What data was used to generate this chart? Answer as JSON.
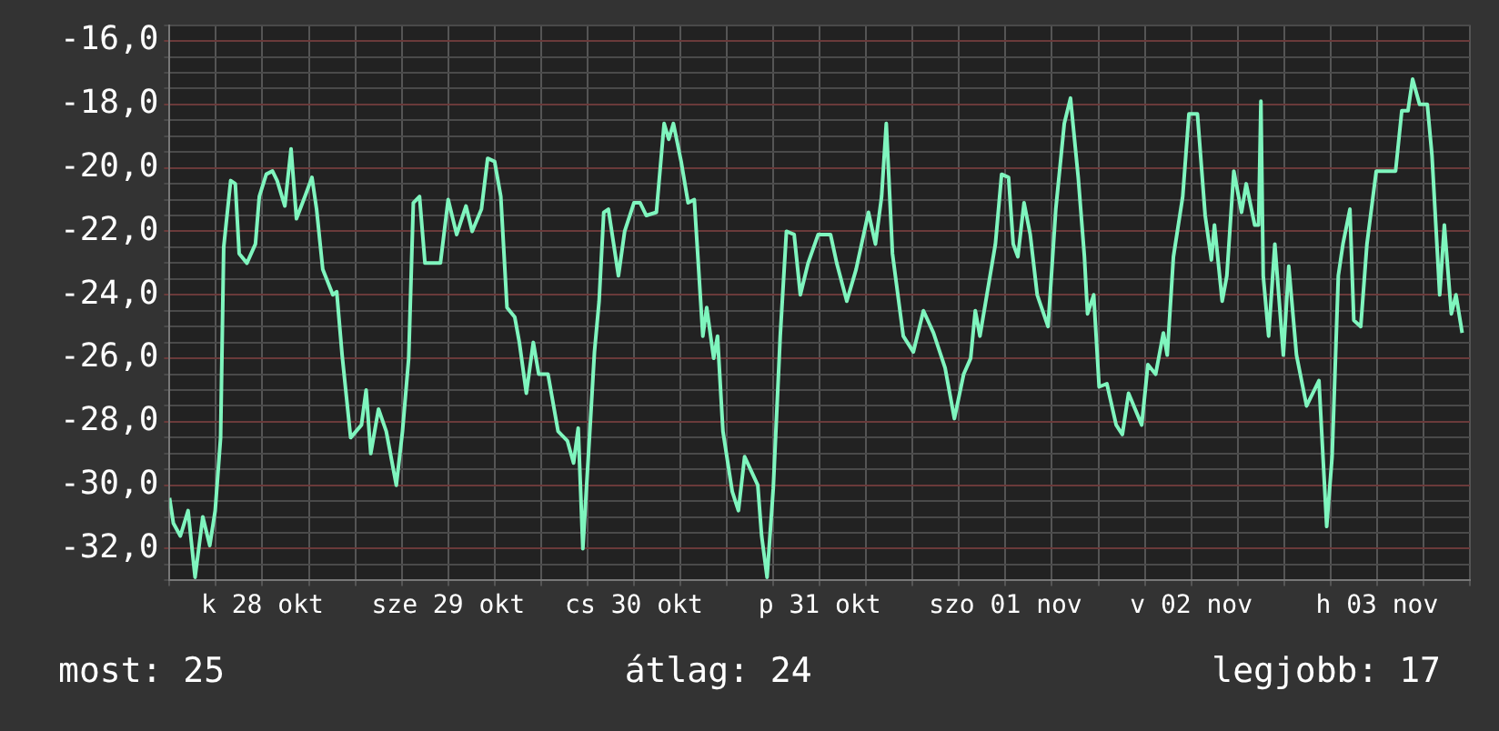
{
  "chart_data": {
    "type": "line",
    "annotations": [
      "most: 25",
      "átlag: 24",
      "legjobb: 17"
    ],
    "x": [
      "--10-28T00:00",
      "--10-28T00:30",
      "--10-28T01:24",
      "--10-28T02:24",
      "--10-28T03:18",
      "--10-28T04:18",
      "--10-28T05:12",
      "--10-28T05:54",
      "--10-28T06:36",
      "--10-28T07:00",
      "--10-28T07:54",
      "--10-28T08:30",
      "--10-28T09:00",
      "--10-28T10:00",
      "--10-28T11:06",
      "--10-28T11:36",
      "--10-28T12:30",
      "--10-28T13:18",
      "--10-28T13:54",
      "--10-28T14:54",
      "--10-28T15:42",
      "--10-28T16:24",
      "--10-28T17:30",
      "--10-28T18:24",
      "--10-28T19:00",
      "--10-28T19:48",
      "--10-28T21:06",
      "--10-28T21:36",
      "--10-28T22:18",
      "--10-28T23:24",
      "--10-29T00:48",
      "--10-29T01:24",
      "--10-29T02:00",
      "--10-29T03:00",
      "--10-29T04:00",
      "--10-29T05:18",
      "--10-29T06:06",
      "--10-29T06:54",
      "--10-29T07:30",
      "--10-29T08:18",
      "--10-29T09:00",
      "--10-29T11:00",
      "--10-29T12:00",
      "--10-29T13:06",
      "--10-29T14:18",
      "--10-29T15:06",
      "--10-29T16:18",
      "--10-29T17:06",
      "--10-29T18:00",
      "--10-29T18:48",
      "--10-29T19:36",
      "--10-29T20:36",
      "--10-29T21:12",
      "--10-29T22:06",
      "--10-29T23:00",
      "--10-29T23:42",
      "--10-30T00:54",
      "--10-30T02:12",
      "--10-30T03:24",
      "--10-30T04:12",
      "--10-30T04:48",
      "--10-30T05:24",
      "--10-30T06:24",
      "--10-30T06:54",
      "--10-30T07:30",
      "--10-30T08:06",
      "--10-30T08:42",
      "--10-30T10:00",
      "--10-30T10:48",
      "--10-30T12:00",
      "--10-30T12:48",
      "--10-30T13:36",
      "--10-30T14:54",
      "--10-30T15:54",
      "--10-30T16:30",
      "--10-30T17:06",
      "--10-30T18:06",
      "--10-30T19:00",
      "--10-30T19:48",
      "--10-30T20:54",
      "--10-30T21:24",
      "--10-30T22:18",
      "--10-30T22:48",
      "--10-30T23:30",
      "--10-31T00:42",
      "--10-31T01:30",
      "--10-31T02:18",
      "--10-31T04:00",
      "--10-31T04:30",
      "--10-31T05:12",
      "--10-31T06:00",
      "--10-31T06:54",
      "--10-31T07:42",
      "--10-31T08:42",
      "--10-31T09:30",
      "--10-31T10:30",
      "--10-31T11:48",
      "--10-31T13:24",
      "--10-31T14:12",
      "--10-31T15:30",
      "--10-31T16:42",
      "--10-31T18:18",
      "--10-31T19:12",
      "--10-31T20:00",
      "--10-31T20:36",
      "--10-31T21:24",
      "--10-31T22:48",
      "--11-01T00:06",
      "--11-01T01:24",
      "--11-01T02:42",
      "--11-01T04:12",
      "--11-01T05:24",
      "--11-01T06:36",
      "--11-01T07:30",
      "--11-01T08:06",
      "--11-01T08:42",
      "--11-01T10:42",
      "--11-01T11:30",
      "--11-01T12:24",
      "--11-01T13:00",
      "--11-01T13:36",
      "--11-01T14:24",
      "--11-01T15:12",
      "--11-01T16:06",
      "--11-01T17:30",
      "--11-01T18:30",
      "--11-01T19:36",
      "--11-01T20:24",
      "--11-01T21:24",
      "--11-01T22:12",
      "--11-01T22:36",
      "--11-01T23:24",
      "--11-02T00:06",
      "--11-02T01:06",
      "--11-02T02:18",
      "--11-02T03:06",
      "--11-02T03:54",
      "--11-02T05:36",
      "--11-02T06:24",
      "--11-02T07:24",
      "--11-02T08:24",
      "--11-02T08:54",
      "--11-02T09:42",
      "--11-02T10:54",
      "--11-02T11:42",
      "--11-02T12:48",
      "--11-02T13:48",
      "--11-02T14:36",
      "--11-02T15:00",
      "--11-02T16:00",
      "--11-02T16:36",
      "--11-02T17:30",
      "--11-02T18:30",
      "--11-02T19:06",
      "--11-02T20:12",
      "--11-02T20:42",
      "--11-02T21:00",
      "--11-02T21:18",
      "--11-02T22:00",
      "--11-02T22:48",
      "--11-02T23:54",
      "--11-03T00:36",
      "--11-03T01:36",
      "--11-03T02:54",
      "--11-03T04:30",
      "--11-03T05:30",
      "--11-03T06:12",
      "--11-03T07:00",
      "--11-03T07:36",
      "--11-03T08:30",
      "--11-03T09:00",
      "--11-03T09:54",
      "--11-03T10:42",
      "--11-03T11:54",
      "--11-03T14:24",
      "--11-03T15:12",
      "--11-03T16:00",
      "--11-03T16:36",
      "--11-03T17:30",
      "--11-03T18:30",
      "--11-03T19:06",
      "--11-03T20:06",
      "--11-03T20:42",
      "--11-03T21:36",
      "--11-03T22:12",
      "--11-03T23:00"
    ],
    "series": [
      {
        "color": "#7ff5be",
        "values": [
          -30.4,
          -31.2,
          -31.6,
          -30.8,
          -32.9,
          -31.0,
          -31.9,
          -30.8,
          -28.5,
          -22.5,
          -20.4,
          -20.5,
          -22.7,
          -23.0,
          -22.4,
          -20.9,
          -20.2,
          -20.1,
          -20.4,
          -21.2,
          -19.4,
          -21.6,
          -20.9,
          -20.3,
          -21.3,
          -23.2,
          -24.0,
          -23.9,
          -25.9,
          -28.5,
          -28.1,
          -27.0,
          -29.0,
          -27.6,
          -28.3,
          -30.0,
          -28.3,
          -26.0,
          -21.1,
          -20.9,
          -23.0,
          -23.0,
          -21.0,
          -22.1,
          -21.2,
          -22.0,
          -21.3,
          -19.7,
          -19.8,
          -20.9,
          -24.4,
          -24.7,
          -25.5,
          -27.1,
          -25.5,
          -26.5,
          -26.5,
          -28.3,
          -28.6,
          -29.3,
          -28.2,
          -32.0,
          -27.9,
          -25.8,
          -24.2,
          -21.4,
          -21.3,
          -23.4,
          -22.0,
          -21.1,
          -21.1,
          -21.5,
          -21.4,
          -18.6,
          -19.1,
          -18.6,
          -19.8,
          -21.1,
          -21.0,
          -25.3,
          -24.4,
          -26.0,
          -25.3,
          -28.3,
          -30.2,
          -30.8,
          -29.1,
          -30.0,
          -31.6,
          -32.9,
          -30.1,
          -25.3,
          -22.0,
          -22.1,
          -24.0,
          -23.0,
          -22.1,
          -22.1,
          -23.0,
          -24.2,
          -23.2,
          -21.4,
          -22.4,
          -20.9,
          -18.6,
          -22.7,
          -25.3,
          -25.8,
          -24.5,
          -25.2,
          -26.3,
          -27.9,
          -26.5,
          -26.0,
          -24.5,
          -25.3,
          -22.4,
          -20.2,
          -20.3,
          -22.4,
          -22.8,
          -21.1,
          -22.1,
          -24.0,
          -25.0,
          -21.3,
          -18.6,
          -17.8,
          -20.3,
          -22.8,
          -24.6,
          -24.0,
          -26.9,
          -26.8,
          -28.1,
          -28.4,
          -27.1,
          -28.1,
          -26.2,
          -26.5,
          -25.2,
          -25.9,
          -22.8,
          -20.9,
          -18.3,
          -18.3,
          -21.5,
          -22.9,
          -21.8,
          -24.2,
          -23.4,
          -20.1,
          -21.4,
          -20.5,
          -21.8,
          -21.8,
          -17.9,
          -23.4,
          -25.3,
          -22.4,
          -25.9,
          -23.1,
          -25.9,
          -27.5,
          -26.7,
          -31.3,
          -29.1,
          -23.4,
          -22.4,
          -21.3,
          -24.8,
          -25.0,
          -22.4,
          -20.1,
          -20.1,
          -18.2,
          -18.2,
          -17.2,
          -18.0,
          -18.0,
          -19.6,
          -24.0,
          -21.8,
          -24.6,
          -24.0,
          -25.2
        ]
      }
    ],
    "xlim": [
      "--10-28T00:00",
      "--11-04T00:00"
    ],
    "xticks": [
      {
        "value": "--10-28T00:00",
        "label": null
      },
      {
        "value": "--10-28T06:00",
        "label": null
      },
      {
        "value": "--10-28T12:00",
        "label": "k 28 okt"
      },
      {
        "value": "--10-28T18:00",
        "label": null
      },
      {
        "value": "--10-29T00:00",
        "label": null
      },
      {
        "value": "--10-29T06:00",
        "label": null
      },
      {
        "value": "--10-29T12:00",
        "label": "sze 29 okt"
      },
      {
        "value": "--10-29T18:00",
        "label": null
      },
      {
        "value": "--10-30T00:00",
        "label": null
      },
      {
        "value": "--10-30T06:00",
        "label": null
      },
      {
        "value": "--10-30T12:00",
        "label": "cs 30 okt"
      },
      {
        "value": "--10-30T18:00",
        "label": null
      },
      {
        "value": "--10-31T00:00",
        "label": null
      },
      {
        "value": "--10-31T06:00",
        "label": null
      },
      {
        "value": "--10-31T12:00",
        "label": "p 31 okt"
      },
      {
        "value": "--10-31T18:00",
        "label": null
      },
      {
        "value": "--11-01T00:00",
        "label": null
      },
      {
        "value": "--11-01T06:00",
        "label": null
      },
      {
        "value": "--11-01T12:00",
        "label": "szo 01 nov"
      },
      {
        "value": "--11-01T18:00",
        "label": null
      },
      {
        "value": "--11-02T00:00",
        "label": null
      },
      {
        "value": "--11-02T06:00",
        "label": null
      },
      {
        "value": "--11-02T12:00",
        "label": "v 02 nov"
      },
      {
        "value": "--11-02T18:00",
        "label": null
      },
      {
        "value": "--11-03T00:00",
        "label": null
      },
      {
        "value": "--11-03T06:00",
        "label": null
      },
      {
        "value": "--11-03T12:00",
        "label": "h 03 nov"
      },
      {
        "value": "--11-03T18:00",
        "label": null
      },
      {
        "value": "--11-04T00:00",
        "label": null
      }
    ],
    "ylim": [
      -33,
      -15.5
    ],
    "yticks": [
      {
        "value": -33,
        "label": null
      },
      {
        "value": -32.5,
        "label": null
      },
      {
        "value": -32,
        "label": "-32,0"
      },
      {
        "value": -31.5,
        "label": null
      },
      {
        "value": -31,
        "label": null
      },
      {
        "value": -30.5,
        "label": null
      },
      {
        "value": -30,
        "label": "-30,0"
      },
      {
        "value": -29.5,
        "label": null
      },
      {
        "value": -29,
        "label": null
      },
      {
        "value": -28.5,
        "label": null
      },
      {
        "value": -28,
        "label": "-28,0"
      },
      {
        "value": -27.5,
        "label": null
      },
      {
        "value": -27,
        "label": null
      },
      {
        "value": -26.5,
        "label": null
      },
      {
        "value": -26,
        "label": "-26,0"
      },
      {
        "value": -25.5,
        "label": null
      },
      {
        "value": -25,
        "label": null
      },
      {
        "value": -24.5,
        "label": null
      },
      {
        "value": -24,
        "label": "-24,0"
      },
      {
        "value": -23.5,
        "label": null
      },
      {
        "value": -23,
        "label": null
      },
      {
        "value": -22.5,
        "label": null
      },
      {
        "value": -22,
        "label": "-22,0"
      },
      {
        "value": -21.5,
        "label": null
      },
      {
        "value": -21,
        "label": null
      },
      {
        "value": -20.5,
        "label": null
      },
      {
        "value": -20,
        "label": "-20,0"
      },
      {
        "value": -19.5,
        "label": null
      },
      {
        "value": -19,
        "label": null
      },
      {
        "value": -18.5,
        "label": null
      },
      {
        "value": -18,
        "label": "-18,0"
      },
      {
        "value": -17.5,
        "label": null
      },
      {
        "value": -17,
        "label": null
      },
      {
        "value": -16.5,
        "label": null
      },
      {
        "value": -16,
        "label": "-16,0"
      },
      {
        "value": -15.5,
        "label": null
      }
    ],
    "grid": true,
    "marker": "none",
    "line_style": "solid"
  }
}
